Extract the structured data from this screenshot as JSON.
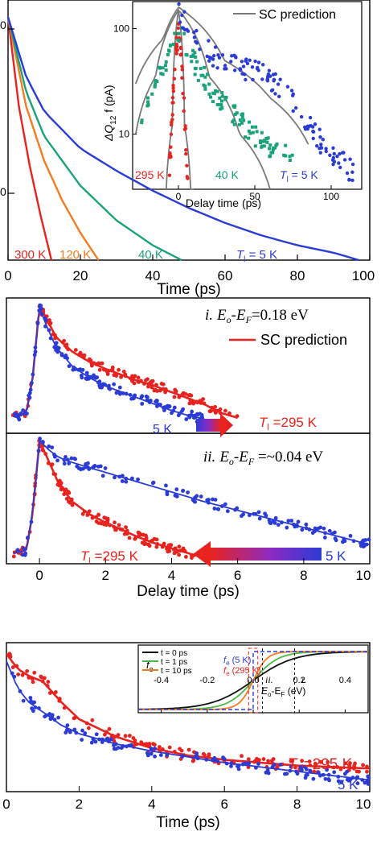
{
  "colors": {
    "red": "#e8231f",
    "orange": "#f47b20",
    "green": "#1aa37a",
    "blue": "#2b3bd6",
    "gray": "#7a7a7a",
    "black": "#111111",
    "lightgreen": "#4cb848"
  },
  "chart_data": [
    {
      "id": "panel-a",
      "type": "line",
      "xlabel": "Time (ps)",
      "ylabel": "",
      "xlim": [
        0,
        100
      ],
      "ylim": [
        0,
        1
      ],
      "xticks": [
        "0",
        "20",
        "40",
        "60",
        "80",
        "100"
      ],
      "grid": false,
      "series": [
        {
          "name": "300 K",
          "color": "#e8231f",
          "x": [
            0,
            3,
            6,
            9,
            12
          ],
          "y": [
            0.98,
            0.62,
            0.38,
            0.18,
            0.0
          ]
        },
        {
          "name": "120 K",
          "color": "#f47b20",
          "x": [
            0,
            5,
            10,
            15,
            20,
            25
          ],
          "y": [
            0.98,
            0.62,
            0.4,
            0.24,
            0.11,
            0.0
          ]
        },
        {
          "name": "40 K",
          "color": "#1aa37a",
          "x": [
            0,
            5,
            10,
            20,
            30,
            40,
            48
          ],
          "y": [
            0.98,
            0.68,
            0.5,
            0.3,
            0.16,
            0.06,
            0.0
          ]
        },
        {
          "name": "T_l = 5 K",
          "color": "#2b3bd6",
          "x": [
            0,
            5,
            10,
            20,
            30,
            40,
            50,
            60,
            70,
            80,
            90,
            97
          ],
          "y": [
            0.98,
            0.74,
            0.6,
            0.45,
            0.36,
            0.28,
            0.21,
            0.15,
            0.1,
            0.06,
            0.03,
            0.0
          ]
        }
      ],
      "labels": [
        {
          "text": "300 K",
          "color": "#e8231f"
        },
        {
          "text": "120 K",
          "color": "#f47b20"
        },
        {
          "text": "40 K",
          "color": "#1aa37a"
        },
        {
          "text": "T",
          "sub": "l",
          "tail": " = 5 K",
          "color": "#2b3bd6"
        }
      ]
    },
    {
      "id": "panel-a-inset",
      "type": "scatter",
      "xlabel": "Delay time (ps)",
      "ylabel": "ΔQ",
      "ylabel_sub": "12",
      "ylabel_tail": " f (pA)",
      "xlim": [
        -30,
        120
      ],
      "ylim": [
        3,
        180
      ],
      "yscale": "log",
      "xticks": [
        "0",
        "50",
        "100"
      ],
      "yticks": [
        "10",
        "100"
      ],
      "legend": "SC prediction",
      "series": [
        {
          "name": "295 K",
          "color": "#e8231f",
          "x": [
            -6,
            -5,
            -4,
            -3,
            -2,
            -1,
            0,
            1,
            2,
            3,
            4,
            5,
            6
          ],
          "y": [
            4,
            7,
            15,
            30,
            55,
            80,
            90,
            78,
            50,
            28,
            14,
            7,
            4
          ]
        },
        {
          "name": "40 K",
          "color": "#1aa37a",
          "x": [
            -25,
            -20,
            -15,
            -10,
            -6,
            -3,
            0,
            4,
            8,
            12,
            16,
            20,
            25,
            30,
            35,
            40,
            45,
            50,
            55,
            62,
            70,
            78
          ],
          "y": [
            12,
            18,
            28,
            42,
            58,
            75,
            100,
            72,
            55,
            44,
            36,
            30,
            24,
            20,
            17,
            14,
            12,
            10,
            8.5,
            7.5,
            7,
            6.5
          ]
        },
        {
          "name": "T_l = 5 K",
          "color": "#2b3bd6",
          "x": [
            0,
            5,
            10,
            15,
            20,
            25,
            30,
            35,
            40,
            45,
            50,
            55,
            60,
            65,
            70,
            75,
            80,
            85,
            90,
            95,
            100,
            105,
            110,
            115
          ],
          "y": [
            150,
            105,
            85,
            72,
            62,
            55,
            50,
            46,
            44,
            42,
            40,
            38,
            34,
            30,
            25,
            20,
            16,
            13,
            10,
            8,
            7,
            6,
            5,
            4.5
          ]
        }
      ],
      "labels": [
        {
          "text": "295 K",
          "color": "#e8231f"
        },
        {
          "text": "40 K",
          "color": "#1aa37a"
        },
        {
          "text": "T",
          "sub": "l",
          "tail": " = 5 K",
          "color": "#2b3bd6"
        }
      ]
    },
    {
      "id": "panel-b-i",
      "type": "scatter",
      "xlim": [
        -1,
        10
      ],
      "annotation": {
        "roman": "i.",
        "expr": "E",
        "sub1": "o",
        "mid": "-E",
        "sub2": "F",
        "tail": "=0.18 eV"
      },
      "legend": "SC prediction",
      "series": [
        {
          "name": "T_l =295 K",
          "color": "#e8231f",
          "x": [
            -0.8,
            -0.4,
            -0.2,
            0,
            0.2,
            0.5,
            1,
            1.5,
            2,
            2.5,
            3,
            3.5,
            4,
            4.5,
            5,
            5.5,
            6
          ],
          "y": [
            0.08,
            0.1,
            0.4,
            0.98,
            0.88,
            0.72,
            0.6,
            0.52,
            0.46,
            0.41,
            0.36,
            0.32,
            0.27,
            0.22,
            0.17,
            0.1,
            0.06
          ]
        },
        {
          "name": "5 K",
          "color": "#2b3bd6",
          "x": [
            -0.8,
            -0.4,
            -0.2,
            0,
            0.2,
            0.5,
            1,
            1.5,
            2,
            2.5,
            3,
            3.5,
            4,
            4.5,
            5
          ],
          "y": [
            0.07,
            0.09,
            0.4,
            0.97,
            0.82,
            0.64,
            0.48,
            0.39,
            0.32,
            0.27,
            0.22,
            0.17,
            0.12,
            0.08,
            0.05
          ]
        }
      ],
      "labels": [
        {
          "text": "T",
          "sub": "l",
          "tail": " =295 K",
          "color": "#e8231f"
        },
        {
          "text": "5 K",
          "color": "#2b3bd6"
        }
      ]
    },
    {
      "id": "panel-b-ii",
      "type": "scatter",
      "xlabel": "Delay time (ps)",
      "xlim": [
        -1,
        10
      ],
      "xticks": [
        "0",
        "2",
        "4",
        "6",
        "8",
        "10"
      ],
      "annotation": {
        "roman": "ii.",
        "expr": "E",
        "sub1": "o",
        "mid": "-E",
        "sub2": "F",
        "tail": " =~0.04 eV"
      },
      "series": [
        {
          "name": "T_l =295 K",
          "color": "#e8231f",
          "x": [
            -0.8,
            -0.4,
            -0.2,
            0,
            0.3,
            0.6,
            1,
            1.5,
            2,
            2.5,
            3,
            3.5,
            4,
            4.5,
            5
          ],
          "y": [
            0.07,
            0.08,
            0.4,
            0.98,
            0.8,
            0.62,
            0.48,
            0.38,
            0.31,
            0.25,
            0.19,
            0.14,
            0.1,
            0.06,
            0.02
          ]
        },
        {
          "name": "5 K",
          "color": "#2b3bd6",
          "x": [
            -0.8,
            -0.4,
            -0.2,
            0,
            0.3,
            0.6,
            1,
            2,
            3,
            4,
            5,
            6,
            7,
            8,
            9,
            10
          ],
          "y": [
            0.06,
            0.08,
            0.4,
            0.98,
            0.9,
            0.84,
            0.8,
            0.72,
            0.64,
            0.56,
            0.48,
            0.41,
            0.34,
            0.27,
            0.2,
            0.13
          ]
        }
      ],
      "labels": [
        {
          "text": "T",
          "sub": "l",
          "tail": " =295 K",
          "color": "#e8231f"
        },
        {
          "text": "5 K",
          "color": "#2b3bd6"
        }
      ]
    },
    {
      "id": "panel-c",
      "type": "scatter",
      "xlabel": "Time (ps)",
      "xlim": [
        0,
        10
      ],
      "xticks": [
        "0",
        "2",
        "4",
        "6",
        "8",
        "10"
      ],
      "series": [
        {
          "name": "T_l =295 K",
          "color": "#e8231f",
          "x": [
            0,
            0.3,
            0.6,
            1,
            1.5,
            2,
            3,
            4,
            5,
            6,
            7,
            8,
            9,
            10
          ],
          "y": [
            0.95,
            0.85,
            0.8,
            0.76,
            0.62,
            0.5,
            0.38,
            0.3,
            0.25,
            0.22,
            0.2,
            0.18,
            0.17,
            0.16
          ]
        },
        {
          "name": "5 K",
          "color": "#2b3bd6",
          "x": [
            0,
            0.3,
            0.6,
            1,
            1.5,
            2,
            3,
            4,
            5,
            6,
            7,
            8,
            9,
            10
          ],
          "y": [
            0.9,
            0.72,
            0.62,
            0.55,
            0.46,
            0.4,
            0.33,
            0.28,
            0.24,
            0.2,
            0.17,
            0.14,
            0.11,
            0.08
          ]
        }
      ],
      "labels": [
        {
          "text": "T",
          "sub": "l",
          "tail": " =295 K",
          "color": "#e8231f"
        },
        {
          "text": "5 K",
          "color": "#2b3bd6"
        }
      ]
    },
    {
      "id": "panel-c-inset",
      "type": "line",
      "ylabel": "f",
      "ylabel_sub": "e",
      "xlabel": "E",
      "xlabel_sub1": "o",
      "xlabel_mid": "-E",
      "xlabel_sub2": "F",
      "xlabel_tail": " (eV)",
      "xlim": [
        -0.5,
        0.5
      ],
      "xticks": [
        "-0.4",
        "-0.2",
        "0.0",
        "0.2",
        "0.4"
      ],
      "series": [
        {
          "name": "t = 0 ps",
          "color": "#111111",
          "kT": 0.09
        },
        {
          "name": "t = 1 ps",
          "color": "#4cb848",
          "kT": 0.055
        },
        {
          "name": "t = 10 ps",
          "color": "#f47b20",
          "kT": 0.03
        }
      ],
      "annotations": [
        {
          "text": "f",
          "sub": "e",
          "tail": " (5 K)",
          "color": "#2b3bd6"
        },
        {
          "text": "f",
          "sub": "e",
          "tail": " (295 K)",
          "color": "#e8231f"
        },
        {
          "text": "ii.",
          "color": "#111111"
        },
        {
          "text": "i.",
          "color": "#111111"
        }
      ],
      "markers_x": [
        0.04,
        0.18
      ]
    }
  ],
  "panels": {
    "panel_a_scalebar_label": "0"
  }
}
